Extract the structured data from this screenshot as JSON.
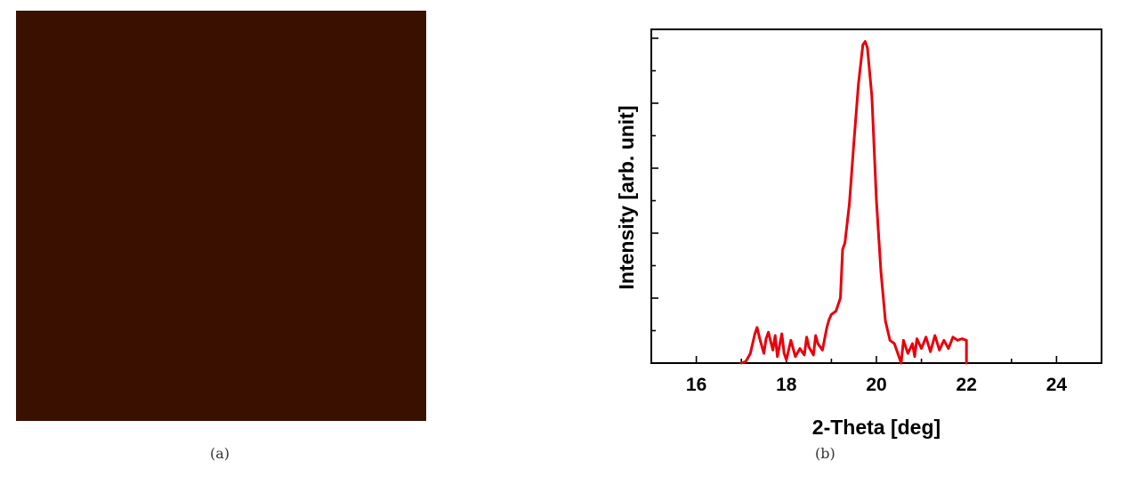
{
  "panels": {
    "a": {
      "label": "(a)"
    },
    "b": {
      "label": "(b)"
    }
  },
  "afm_image": {
    "colors": {
      "dark": "#3a1200",
      "mid": "#b35a08",
      "bright": "#f6b53c",
      "highlight": "#fff6d8"
    }
  },
  "chart_data": {
    "type": "line",
    "title": "",
    "xlabel": "2-Theta [deg]",
    "ylabel": "Intensity [arb. unit]",
    "xlim": [
      15,
      25
    ],
    "ylim": [
      0,
      10
    ],
    "xticks": [
      16,
      18,
      20,
      22,
      24
    ],
    "xtick_labels": [
      "16",
      "18",
      "20",
      "22",
      "24"
    ],
    "y_tick_labels_shown": false,
    "grid": false,
    "legend": "none",
    "series": [
      {
        "color": "#e8000b",
        "x": [
          17.0,
          17.1,
          17.2,
          17.3,
          17.35,
          17.4,
          17.5,
          17.55,
          17.6,
          17.7,
          17.75,
          17.8,
          17.9,
          17.95,
          18.0,
          18.1,
          18.2,
          18.3,
          18.4,
          18.45,
          18.5,
          18.6,
          18.65,
          18.7,
          18.8,
          18.9,
          18.95,
          19.0,
          19.1,
          19.2,
          19.25,
          19.3,
          19.4,
          19.5,
          19.6,
          19.7,
          19.75,
          19.8,
          19.9,
          20.0,
          20.1,
          20.2,
          20.3,
          20.4,
          20.5,
          20.55,
          20.6,
          20.7,
          20.8,
          20.85,
          20.9,
          21.0,
          21.1,
          21.2,
          21.3,
          21.4,
          21.5,
          21.6,
          21.7,
          21.8,
          21.9,
          22.0,
          22.0
        ],
        "y": [
          0.0,
          0.05,
          0.3,
          0.9,
          1.1,
          0.8,
          0.3,
          0.75,
          0.95,
          0.4,
          0.85,
          0.2,
          0.9,
          0.3,
          0.1,
          0.7,
          0.2,
          0.45,
          0.25,
          0.8,
          0.5,
          0.25,
          0.85,
          0.6,
          0.4,
          1.1,
          1.35,
          1.5,
          1.6,
          2.0,
          3.5,
          3.7,
          4.9,
          6.8,
          8.6,
          9.8,
          9.9,
          9.7,
          8.2,
          5.0,
          2.8,
          1.3,
          0.7,
          0.6,
          0.2,
          0.0,
          0.7,
          0.3,
          0.6,
          0.2,
          0.75,
          0.45,
          0.8,
          0.35,
          0.85,
          0.4,
          0.7,
          0.45,
          0.8,
          0.7,
          0.75,
          0.7,
          0.0
        ]
      }
    ]
  }
}
